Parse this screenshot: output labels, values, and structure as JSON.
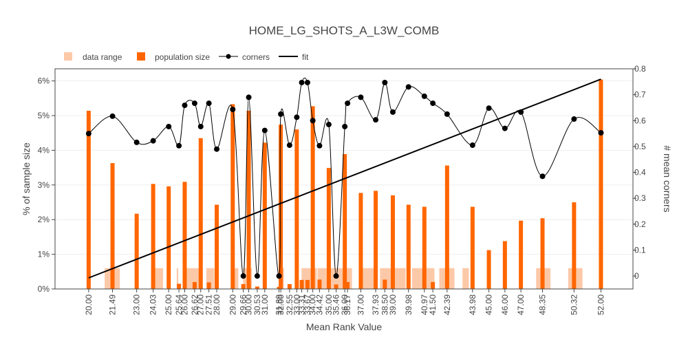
{
  "chart_data": {
    "type": "bar",
    "title": "HOME_LG_SHOTS_A_L3W_COMB",
    "xlabel": "Mean Rank Value",
    "ylabel": "% of sample size",
    "y2label": "# mean corners",
    "xlim": [
      17.9,
      54.0
    ],
    "ylim": [
      0,
      6.35
    ],
    "y2lim": [
      -0.05,
      0.8
    ],
    "yticks": [
      "0%",
      "1%",
      "2%",
      "3%",
      "4%",
      "5%",
      "6%"
    ],
    "y2ticks": [
      "0",
      "0.1",
      "0.2",
      "0.3",
      "0.4",
      "0.5",
      "0.6",
      "0.7",
      "0.8"
    ],
    "grid": true,
    "legend_position": "top-left",
    "legend": [
      "data range",
      "population size",
      "corners",
      "fit"
    ],
    "colors": {
      "data_range": "#fcc9a8",
      "population": "#ff6600",
      "corners": "#000000",
      "fit": "#000000",
      "grid": "#eeeeee"
    },
    "xticks": [
      "20.00",
      "21.49",
      "23.00",
      "24.03",
      "25.00",
      "25.64",
      "26.00",
      "26.62",
      "27.00",
      "27.51",
      "28.00",
      "29.00",
      "29.66",
      "30.00",
      "30.53",
      "31.00",
      "31.89",
      "32.00",
      "32.55",
      "33.00",
      "33.31",
      "33.67",
      "34.00",
      "34.42",
      "35.00",
      "35.46",
      "36.00",
      "36.17",
      "37.00",
      "37.93",
      "38.50",
      "39.00",
      "39.98",
      "40.97",
      "41.50",
      "42.39",
      "43.98",
      "45.00",
      "46.00",
      "47.00",
      "48.35",
      "50.32",
      "52.00"
    ],
    "data_range": [
      {
        "from": 21.0,
        "to": 21.95,
        "value": 0.6
      },
      {
        "from": 23.9,
        "to": 24.65,
        "value": 0.6
      },
      {
        "from": 25.5,
        "to": 25.6,
        "value": 0.6
      },
      {
        "from": 25.9,
        "to": 26.95,
        "value": 0.6
      },
      {
        "from": 27.35,
        "to": 27.85,
        "value": 0.6
      },
      {
        "from": 29.05,
        "to": 29.35,
        "value": 0.6
      },
      {
        "from": 29.65,
        "to": 30.2,
        "value": 0.6
      },
      {
        "from": 31.9,
        "to": 32.2,
        "value": 0.6
      },
      {
        "from": 33.3,
        "to": 34.25,
        "value": 0.6
      },
      {
        "from": 34.3,
        "to": 36.45,
        "value": 0.6
      },
      {
        "from": 37.0,
        "to": 37.9,
        "value": 0.6
      },
      {
        "from": 38.2,
        "to": 39.8,
        "value": 0.6
      },
      {
        "from": 40.2,
        "to": 41.6,
        "value": 0.6
      },
      {
        "from": 41.9,
        "to": 42.85,
        "value": 0.6
      },
      {
        "from": 43.35,
        "to": 43.75,
        "value": 0.6
      },
      {
        "from": 47.95,
        "to": 48.85,
        "value": 0.6
      },
      {
        "from": 49.95,
        "to": 50.85,
        "value": 0.6
      }
    ],
    "population": [
      {
        "x": 20.0,
        "value": 5.14
      },
      {
        "x": 21.49,
        "value": 3.63
      },
      {
        "x": 23.0,
        "value": 2.17
      },
      {
        "x": 24.03,
        "value": 3.03
      },
      {
        "x": 25.0,
        "value": 2.96
      },
      {
        "x": 25.64,
        "value": 0.15
      },
      {
        "x": 26.0,
        "value": 3.09
      },
      {
        "x": 26.62,
        "value": 0.2
      },
      {
        "x": 27.0,
        "value": 4.35
      },
      {
        "x": 27.51,
        "value": 0.19
      },
      {
        "x": 28.0,
        "value": 2.43
      },
      {
        "x": 29.0,
        "value": 5.33
      },
      {
        "x": 29.66,
        "value": 0.14
      },
      {
        "x": 30.0,
        "value": 5.14
      },
      {
        "x": 30.53,
        "value": 0.07
      },
      {
        "x": 31.0,
        "value": 4.22
      },
      {
        "x": 31.89,
        "value": 0.06
      },
      {
        "x": 32.0,
        "value": 4.74
      },
      {
        "x": 32.55,
        "value": 0.14
      },
      {
        "x": 33.0,
        "value": 4.6
      },
      {
        "x": 33.31,
        "value": 0.26
      },
      {
        "x": 33.67,
        "value": 0.26
      },
      {
        "x": 34.0,
        "value": 5.27
      },
      {
        "x": 34.42,
        "value": 0.27
      },
      {
        "x": 35.0,
        "value": 3.49
      },
      {
        "x": 35.46,
        "value": 0.13
      },
      {
        "x": 36.0,
        "value": 3.89
      },
      {
        "x": 36.17,
        "value": 0.2
      },
      {
        "x": 37.0,
        "value": 2.77
      },
      {
        "x": 37.93,
        "value": 2.83
      },
      {
        "x": 38.5,
        "value": 0.27
      },
      {
        "x": 39.0,
        "value": 2.7
      },
      {
        "x": 39.98,
        "value": 2.43
      },
      {
        "x": 40.97,
        "value": 2.37
      },
      {
        "x": 41.5,
        "value": 0.2
      },
      {
        "x": 42.39,
        "value": 3.56
      },
      {
        "x": 43.98,
        "value": 2.37
      },
      {
        "x": 45.0,
        "value": 1.12
      },
      {
        "x": 46.0,
        "value": 1.38
      },
      {
        "x": 47.0,
        "value": 1.97
      },
      {
        "x": 48.35,
        "value": 2.04
      },
      {
        "x": 50.32,
        "value": 2.5
      },
      {
        "x": 52.0,
        "value": 6.04
      }
    ],
    "corners": [
      {
        "x": 20.0,
        "y": 0.55
      },
      {
        "x": 21.49,
        "y": 0.617
      },
      {
        "x": 23.0,
        "y": 0.516
      },
      {
        "x": 24.03,
        "y": 0.522
      },
      {
        "x": 25.0,
        "y": 0.577
      },
      {
        "x": 25.64,
        "y": 0.503
      },
      {
        "x": 26.0,
        "y": 0.659
      },
      {
        "x": 26.62,
        "y": 0.667
      },
      {
        "x": 27.0,
        "y": 0.577
      },
      {
        "x": 27.51,
        "y": 0.667
      },
      {
        "x": 28.0,
        "y": 0.49
      },
      {
        "x": 29.0,
        "y": 0.643
      },
      {
        "x": 29.66,
        "y": 0.0
      },
      {
        "x": 30.0,
        "y": 0.69
      },
      {
        "x": 30.53,
        "y": 0.0
      },
      {
        "x": 31.0,
        "y": 0.562
      },
      {
        "x": 31.89,
        "y": 0.0
      },
      {
        "x": 32.0,
        "y": 0.625
      },
      {
        "x": 32.55,
        "y": 0.505
      },
      {
        "x": 33.0,
        "y": 0.613
      },
      {
        "x": 33.31,
        "y": 0.747
      },
      {
        "x": 33.67,
        "y": 0.747
      },
      {
        "x": 34.0,
        "y": 0.6
      },
      {
        "x": 34.42,
        "y": 0.503
      },
      {
        "x": 35.0,
        "y": 0.585
      },
      {
        "x": 35.46,
        "y": 0.0
      },
      {
        "x": 36.0,
        "y": 0.577
      },
      {
        "x": 36.17,
        "y": 0.667
      },
      {
        "x": 37.0,
        "y": 0.69
      },
      {
        "x": 37.93,
        "y": 0.603
      },
      {
        "x": 38.5,
        "y": 0.747
      },
      {
        "x": 39.0,
        "y": 0.633
      },
      {
        "x": 39.98,
        "y": 0.73
      },
      {
        "x": 40.97,
        "y": 0.694
      },
      {
        "x": 41.5,
        "y": 0.667
      },
      {
        "x": 42.39,
        "y": 0.625
      },
      {
        "x": 43.98,
        "y": 0.505
      },
      {
        "x": 45.0,
        "y": 0.648
      },
      {
        "x": 46.0,
        "y": 0.57
      },
      {
        "x": 47.0,
        "y": 0.633
      },
      {
        "x": 48.35,
        "y": 0.385
      },
      {
        "x": 50.32,
        "y": 0.606
      },
      {
        "x": 52.0,
        "y": 0.553
      }
    ],
    "fit": [
      {
        "x": 20.0,
        "y": 0.32
      },
      {
        "x": 52.0,
        "y": 6.05
      }
    ]
  }
}
